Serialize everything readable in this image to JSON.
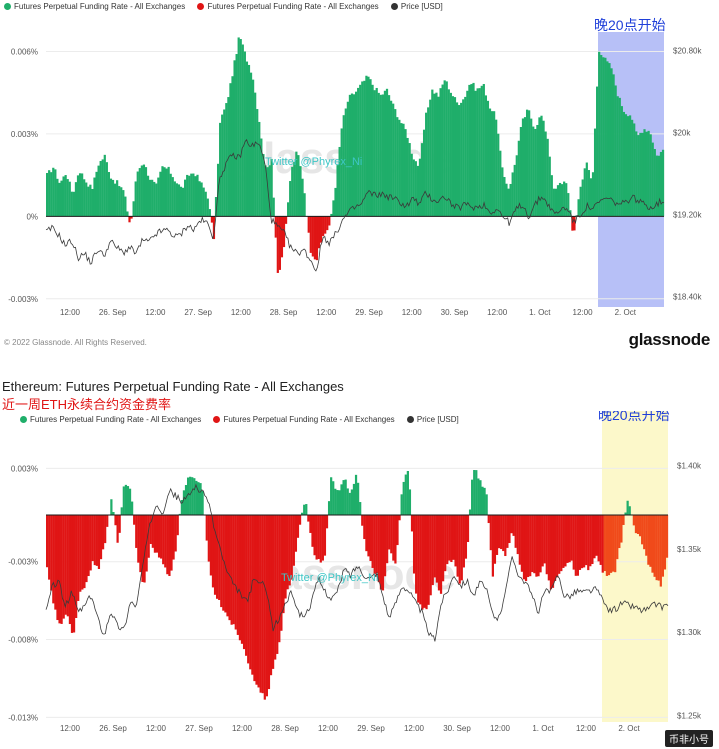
{
  "chart_data": [
    {
      "type": "bar",
      "title": "Futures Perpetual Funding Rate - All Exchanges",
      "legend": [
        {
          "label": "Futures Perpetual Funding Rate - All Exchanges",
          "color": "#1fae6a"
        },
        {
          "label": "Futures Perpetual Funding Rate - All Exchanges",
          "color": "#e01515"
        },
        {
          "label": "Price [USD]",
          "color": "#333333"
        }
      ],
      "left_ticks": [
        "0.006%",
        "0.003%",
        "0%",
        "-0.003%"
      ],
      "left_tick_values": [
        0.006,
        0.003,
        0,
        -0.003
      ],
      "ylim": [
        -0.0033,
        0.0066
      ],
      "right_ticks": [
        "$20.80k",
        "$20k",
        "$19.20k",
        "$18.40k"
      ],
      "right_tick_values": [
        20800,
        20000,
        19200,
        18400
      ],
      "price_ylim": [
        18300,
        20950
      ],
      "x_ticks": [
        "12:00",
        "26. Sep",
        "12:00",
        "27. Sep",
        "12:00",
        "28. Sep",
        "12:00",
        "29. Sep",
        "12:00",
        "30. Sep",
        "12:00",
        "1. Oct",
        "12:00",
        "2. Oct"
      ],
      "annotation": "晚20点开始",
      "watermark": "Twitter @Phyrex_Ni",
      "highlight_color": "#7b8cf0",
      "key_funding": [
        0.0015,
        0.0018,
        0.0012,
        0.0016,
        0.0008,
        0.0017,
        0.0013,
        0.001,
        0.0019,
        0.0022,
        0.0014,
        0.0012,
        0.0009,
        -0.0004,
        0.0016,
        0.002,
        0.0014,
        0.0011,
        0.0018,
        0.0017,
        0.0013,
        0.001,
        0.0015,
        0.0016,
        0.0012,
        0.0008,
        -0.0008,
        0.0035,
        0.0041,
        0.0053,
        0.0066,
        0.0058,
        0.0052,
        0.0036,
        0.0018,
        0.002,
        -0.0022,
        -0.001,
        0.0016,
        0.0024,
        0.0012,
        -0.0012,
        -0.0016,
        -0.0007,
        -0.0004,
        0.0012,
        0.0034,
        0.0043,
        0.0045,
        0.0048,
        0.0051,
        0.0047,
        0.0044,
        0.0046,
        0.004,
        0.0035,
        0.0031,
        0.0022,
        0.0018,
        0.0036,
        0.0046,
        0.0044,
        0.005,
        0.0045,
        0.0041,
        0.0043,
        0.0049,
        0.0046,
        0.0048,
        0.004,
        0.0036,
        0.0016,
        0.001,
        0.002,
        0.0034,
        0.0039,
        0.0032,
        0.0037,
        0.0029,
        0.0009,
        0.0012,
        0.0013,
        -0.0008,
        0.0009,
        0.002,
        0.0012,
        0.0061,
        0.0057,
        0.0054,
        0.0044,
        0.0038,
        0.0037,
        0.0029,
        0.0032,
        0.0031,
        0.0022,
        0.0024
      ],
      "key_price": [
        19030,
        19070,
        19000,
        18900,
        18950,
        18780,
        18820,
        18730,
        18860,
        18800,
        18940,
        18880,
        18830,
        18880,
        18820,
        18950,
        18930,
        19010,
        19040,
        19050,
        18980,
        19010,
        19100,
        19050,
        19150,
        19120,
        18980,
        19560,
        19700,
        19780,
        19750,
        19920,
        19870,
        19900,
        19710,
        19150,
        19080,
        19020,
        18880,
        18820,
        18860,
        18770,
        18650,
        18990,
        18930,
        19010,
        19140,
        19220,
        19270,
        19300,
        19420,
        19390,
        19400,
        19380,
        19360,
        19320,
        19280,
        19360,
        19300,
        19410,
        19350,
        19330,
        19380,
        19300,
        19260,
        19300,
        19280,
        19270,
        19300,
        19220,
        19260,
        19180,
        19120,
        19250,
        19300,
        19180,
        19300,
        19380,
        19300,
        19200,
        19250,
        19270,
        19120,
        19200,
        19280,
        19260,
        19320,
        19360,
        19330,
        19300,
        19310,
        19380,
        19330,
        19300,
        19270,
        19310,
        19340
      ]
    },
    {
      "type": "bar",
      "title": "Ethereum: Futures Perpetual Funding Rate - All Exchanges",
      "subtitle": "近一周ETH永续合约资金费率",
      "legend": [
        {
          "label": "Futures Perpetual Funding Rate - All Exchanges",
          "color": "#1fae6a"
        },
        {
          "label": "Futures Perpetual Funding Rate - All Exchanges",
          "color": "#e01515"
        },
        {
          "label": "Price [USD]",
          "color": "#333333"
        }
      ],
      "left_ticks": [
        "0.003%",
        "-0.003%",
        "-0.008%",
        "-0.013%"
      ],
      "left_tick_values": [
        0.003,
        -0.003,
        -0.008,
        -0.013
      ],
      "ylim": [
        -0.0133,
        0.0036
      ],
      "right_ticks": [
        "$1.40k",
        "$1.35k",
        "$1.30k",
        "$1.25k"
      ],
      "right_tick_values": [
        1400,
        1350,
        1300,
        1250
      ],
      "price_ylim": [
        1246,
        1404
      ],
      "x_ticks": [
        "12:00",
        "26. Sep",
        "12:00",
        "27. Sep",
        "12:00",
        "28. Sep",
        "12:00",
        "29. Sep",
        "12:00",
        "30. Sep",
        "12:00",
        "1. Oct",
        "12:00",
        "2. Oct"
      ],
      "annotation": "晚20点开始",
      "watermark": "Twitter @Phyrex_Ni",
      "highlight_color": "#fbf5b8",
      "key_funding": [
        -0.0035,
        -0.0058,
        -0.0072,
        -0.0062,
        -0.008,
        -0.005,
        -0.0046,
        -0.003,
        -0.0035,
        -0.0018,
        0.0012,
        -0.002,
        0.0022,
        0.0016,
        -0.003,
        -0.0046,
        -0.002,
        -0.0024,
        -0.0032,
        -0.004,
        -0.002,
        0.0015,
        0.0025,
        0.0022,
        0.0018,
        -0.003,
        -0.0052,
        -0.0058,
        -0.0065,
        -0.0072,
        -0.008,
        -0.0092,
        -0.0104,
        -0.0115,
        -0.0118,
        -0.0098,
        -0.0082,
        -0.0052,
        -0.004,
        -0.001,
        0.0012,
        -0.002,
        -0.003,
        -0.0028,
        0.0026,
        0.0014,
        0.0024,
        0.0012,
        0.0028,
        -0.0015,
        -0.003,
        -0.004,
        -0.005,
        -0.0022,
        -0.0032,
        0.002,
        0.003,
        -0.005,
        -0.006,
        -0.006,
        -0.004,
        -0.005,
        -0.003,
        -0.003,
        -0.0046,
        -0.0026,
        0.0032,
        0.0022,
        0.0016,
        -0.004,
        -0.002,
        -0.0026,
        -0.001,
        -0.0028,
        -0.0045,
        -0.0036,
        -0.0042,
        -0.003,
        -0.0048,
        -0.004,
        -0.0035,
        -0.0028,
        -0.004,
        -0.0032,
        -0.0035,
        -0.0026,
        -0.0036,
        -0.004,
        -0.0035,
        -0.0015,
        0.0012,
        -0.001,
        -0.0016,
        -0.003,
        -0.004,
        -0.0045,
        -0.0028
      ],
      "key_price": [
        1312,
        1328,
        1330,
        1315,
        1324,
        1312,
        1316,
        1322,
        1308,
        1298,
        1313,
        1304,
        1301,
        1318,
        1316,
        1342,
        1363,
        1378,
        1372,
        1385,
        1382,
        1378,
        1382,
        1388,
        1384,
        1380,
        1362,
        1348,
        1335,
        1328,
        1323,
        1318,
        1331,
        1330,
        1327,
        1302,
        1308,
        1318,
        1324,
        1311,
        1310,
        1318,
        1332,
        1325,
        1320,
        1324,
        1338,
        1334,
        1340,
        1335,
        1332,
        1336,
        1322,
        1308,
        1318,
        1328,
        1325,
        1318,
        1312,
        1300,
        1295,
        1318,
        1325,
        1335,
        1328,
        1331,
        1322,
        1330,
        1325,
        1310,
        1308,
        1328,
        1345,
        1334,
        1330,
        1322,
        1312,
        1325,
        1324,
        1335,
        1322,
        1322,
        1325,
        1324,
        1325,
        1326,
        1318,
        1313,
        1314,
        1318,
        1316,
        1315,
        1313,
        1314,
        1317,
        1315,
        1317
      ]
    }
  ],
  "copyright": "© 2022 Glassnode. All Rights Reserved.",
  "brand": "glassnode",
  "corner_mark": "币非小号",
  "watermark_logo": "glassnode"
}
